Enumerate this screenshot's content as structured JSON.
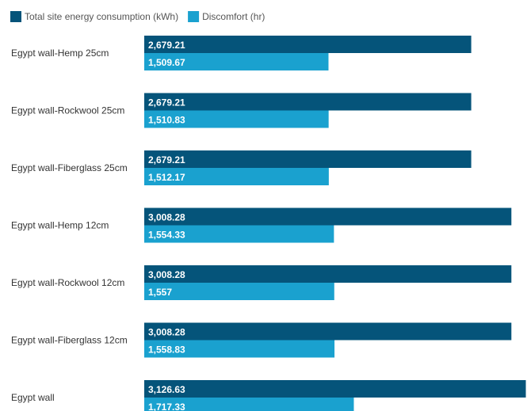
{
  "chart_data": {
    "type": "bar",
    "orientation": "horizontal",
    "categories": [
      "Egypt wall-Hemp 25cm",
      "Egypt wall-Rockwool 25cm",
      "Egypt wall-Fiberglass 25cm",
      "Egypt wall-Hemp 12cm",
      "Egypt wall-Rockwool 12cm",
      "Egypt wall-Fiberglass 12cm",
      "Egypt wall"
    ],
    "series": [
      {
        "name": "Total site energy consumption (kWh)",
        "color": "#05547a",
        "values": [
          2679.21,
          2679.21,
          2679.21,
          3008.28,
          3008.28,
          3008.28,
          3126.63
        ],
        "labels": [
          "2,679.21",
          "2,679.21",
          "2,679.21",
          "3,008.28",
          "3,008.28",
          "3,008.28",
          "3,126.63"
        ]
      },
      {
        "name": "Discomfort (hr)",
        "color": "#1aa1cf",
        "values": [
          1509.67,
          1510.83,
          1512.17,
          1554.33,
          1557,
          1558.83,
          1717.33
        ],
        "labels": [
          "1,509.67",
          "1,510.83",
          "1,512.17",
          "1,554.33",
          "1,557",
          "1,558.83",
          "1,717.33"
        ]
      }
    ],
    "xlim": [
      0,
      3130
    ],
    "grid": false,
    "legend_position": "top-left"
  }
}
